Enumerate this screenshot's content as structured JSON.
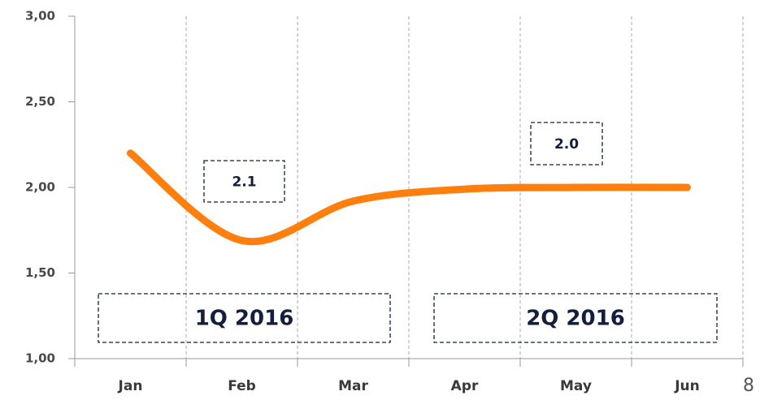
{
  "page_number": "8",
  "chart_data": {
    "type": "line",
    "categories": [
      "Jan",
      "Feb",
      "Mar",
      "Apr",
      "May",
      "Jun"
    ],
    "series": [
      {
        "name": null,
        "color": "#ff7f0e",
        "values": [
          2.2,
          1.69,
          1.92,
          1.99,
          2.0,
          2.0
        ]
      }
    ],
    "ylim": [
      1,
      3
    ],
    "yticks": [
      {
        "value": 1,
        "label": "1,00"
      },
      {
        "value": 1.5,
        "label": "1,50"
      },
      {
        "value": 2,
        "label": "2,00"
      },
      {
        "value": 2.5,
        "label": "2,50"
      },
      {
        "value": 3,
        "label": "3,00"
      }
    ],
    "annotations": [
      "2.1",
      "2.0",
      "1Q 2016",
      "2Q 2016"
    ]
  }
}
